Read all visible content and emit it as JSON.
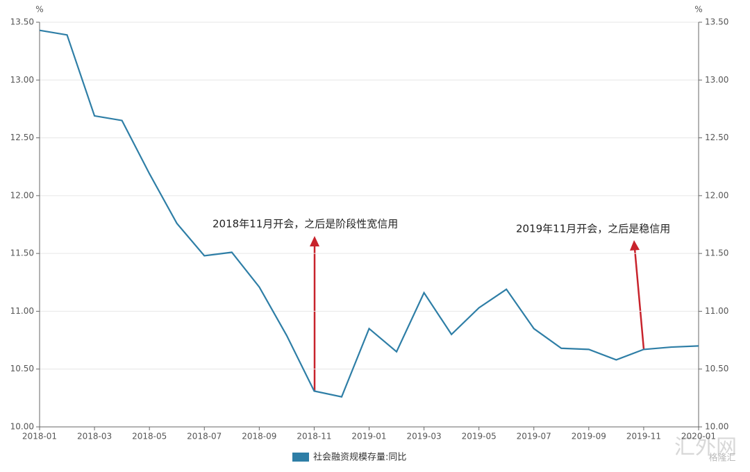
{
  "chart_data": {
    "type": "line",
    "categories": [
      "2018-01",
      null,
      "2018-03",
      null,
      "2018-05",
      null,
      "2018-07",
      null,
      "2018-09",
      null,
      "2018-11",
      null,
      "2019-01",
      null,
      "2019-03",
      null,
      "2019-05",
      null,
      "2019-07",
      null,
      "2019-09",
      null,
      "2019-11",
      null,
      "2020-01"
    ],
    "series": [
      {
        "name": "社会融资规模存量:同比",
        "color": "#2e7ea6",
        "values": [
          13.43,
          13.39,
          12.69,
          12.65,
          12.19,
          11.76,
          11.48,
          11.51,
          11.21,
          10.79,
          10.31,
          10.26,
          10.85,
          10.65,
          11.16,
          10.8,
          11.03,
          11.19,
          10.85,
          10.68,
          10.67,
          10.58,
          10.67,
          10.69,
          10.7
        ]
      }
    ],
    "ylim": [
      10,
      13.5
    ],
    "yticks": [
      {
        "value": 10,
        "label": "10.00"
      },
      {
        "value": 10.5,
        "label": "10.50"
      },
      {
        "value": 11,
        "label": "11.00"
      },
      {
        "value": 11.5,
        "label": "11.50"
      },
      {
        "value": 12,
        "label": "12.00"
      },
      {
        "value": 12.5,
        "label": "12.50"
      },
      {
        "value": 13,
        "label": "13.00"
      },
      {
        "value": 13.5,
        "label": "13.50"
      }
    ],
    "y2lim": [
      10,
      13.5
    ],
    "y2ticks": [
      {
        "value": 10,
        "label": "10.00"
      },
      {
        "value": 10.5,
        "label": "10.50"
      },
      {
        "value": 11,
        "label": "11.00"
      },
      {
        "value": 11.5,
        "label": "11.50"
      },
      {
        "value": 12,
        "label": "12.00"
      },
      {
        "value": 12.5,
        "label": "12.50"
      },
      {
        "value": 13,
        "label": "13.00"
      },
      {
        "value": 13.5,
        "label": "13.50"
      }
    ],
    "y_unit": "%",
    "y2_unit": "%",
    "grid": true,
    "annotations": [
      "2018年11月开会，之后是阶段性宽信用",
      "2019年11月开会，之后是稳信用"
    ],
    "watermark": [
      "汇外网",
      "格隆汇"
    ]
  }
}
